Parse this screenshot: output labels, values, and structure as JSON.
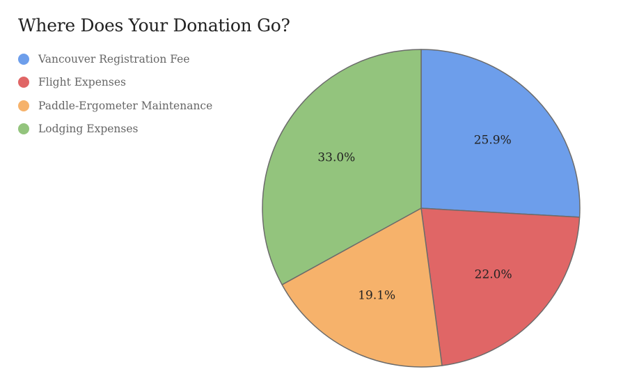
{
  "chart_data": {
    "type": "pie",
    "title": "Where Does Your Donation Go?",
    "categories": [
      "Vancouver Registration Fee",
      "Flight Expenses",
      "Paddle-Ergometer Maintenance",
      "Lodging Expenses"
    ],
    "values": [
      25.9,
      22.0,
      19.1,
      33.0
    ],
    "labels": [
      "25.9%",
      "22.0%",
      "19.1%",
      "33.0%"
    ],
    "colors": [
      "#6d9eeb",
      "#e06666",
      "#f6b26b",
      "#93c47d"
    ],
    "legend_position": "top-left",
    "start_angle": "12 o'clock",
    "direction": "clockwise"
  }
}
